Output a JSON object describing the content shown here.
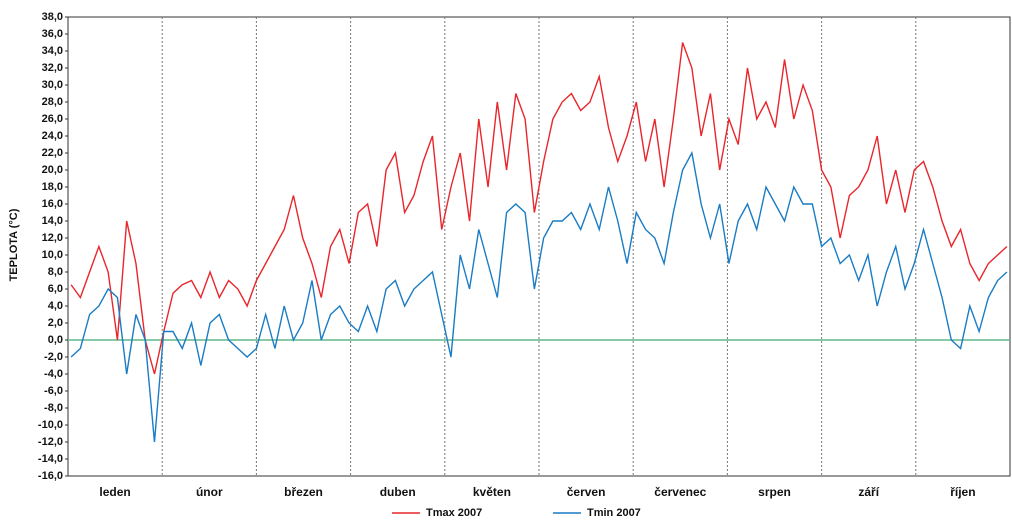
{
  "chart_data": {
    "type": "line",
    "y_label": "TEPLOTA (°C)",
    "categories": [
      "leden",
      "únor",
      "březen",
      "duben",
      "květen",
      "červen",
      "červenec",
      "srpen",
      "září",
      "říjen"
    ],
    "x": [
      1,
      4,
      7,
      10,
      13,
      16,
      19,
      22,
      25,
      28,
      31,
      34,
      37,
      40,
      43,
      46,
      49,
      52,
      55,
      58,
      61,
      64,
      67,
      70,
      73,
      76,
      79,
      82,
      85,
      88,
      91,
      94,
      97,
      100,
      103,
      106,
      109,
      112,
      115,
      118,
      121,
      124,
      127,
      130,
      133,
      136,
      139,
      142,
      145,
      148,
      151,
      154,
      157,
      160,
      163,
      166,
      169,
      172,
      175,
      178,
      181,
      184,
      187,
      190,
      193,
      196,
      199,
      202,
      205,
      208,
      211,
      214,
      217,
      220,
      223,
      226,
      229,
      232,
      235,
      238,
      241,
      244,
      247,
      250,
      253,
      256,
      259,
      262,
      265,
      268,
      271,
      274,
      277,
      280,
      283,
      286,
      289,
      292,
      295,
      298,
      301,
      304
    ],
    "xlim": [
      0,
      305
    ],
    "series": [
      {
        "name": "Tmax 2007",
        "color": "#e8262b",
        "values": [
          6.5,
          5,
          8,
          11,
          8,
          0,
          14,
          9,
          0,
          -4,
          1,
          5.5,
          6.5,
          7,
          5,
          8,
          5,
          7,
          6,
          4,
          7,
          9,
          11,
          13,
          17,
          12,
          9,
          5,
          11,
          13,
          9,
          15,
          16,
          11,
          20,
          22,
          15,
          17,
          21,
          24,
          13,
          18,
          22,
          14,
          26,
          18,
          28,
          20,
          29,
          26,
          15,
          21,
          26,
          28,
          29,
          27,
          28,
          31,
          25,
          21,
          24,
          28,
          21,
          26,
          18,
          26,
          35,
          32,
          24,
          29,
          20,
          26,
          23,
          32,
          26,
          28,
          25,
          33,
          26,
          30,
          27,
          20,
          18,
          12,
          17,
          18,
          20,
          24,
          16,
          20,
          15,
          20,
          21,
          18,
          14,
          11,
          13,
          9,
          7,
          9,
          10,
          11
        ]
      },
      {
        "name": "Tmin 2007",
        "color": "#1a7cc4",
        "values": [
          -2,
          -1,
          3,
          4,
          6,
          5,
          -4,
          3,
          0,
          -12,
          1,
          1,
          -1,
          2,
          -3,
          2,
          3,
          0,
          -1,
          -2,
          -1,
          3,
          -1,
          4,
          0,
          2,
          7,
          0,
          3,
          4,
          2,
          1,
          4,
          1,
          6,
          7,
          4,
          6,
          7,
          8,
          3,
          -2,
          10,
          6,
          13,
          9,
          5,
          15,
          16,
          15,
          6,
          12,
          14,
          14,
          15,
          13,
          16,
          13,
          18,
          14,
          9,
          15,
          13,
          12,
          9,
          15,
          20,
          22,
          16,
          12,
          16,
          9,
          14,
          16,
          13,
          18,
          16,
          14,
          18,
          16,
          16,
          11,
          12,
          9,
          10,
          7,
          10,
          4,
          8,
          11,
          6,
          9,
          13,
          9,
          5,
          0,
          -1,
          4,
          1,
          5,
          7,
          8
        ]
      }
    ],
    "ylim": [
      -16,
      38
    ],
    "yticks": [
      {
        "value": -16,
        "label": "-16,0"
      },
      {
        "value": -14,
        "label": "-14,0"
      },
      {
        "value": -12,
        "label": "-12,0"
      },
      {
        "value": -10,
        "label": "-10,0"
      },
      {
        "value": -8,
        "label": "-8,0"
      },
      {
        "value": -6,
        "label": "-6,0"
      },
      {
        "value": -4,
        "label": "-4,0"
      },
      {
        "value": -2,
        "label": "-2,0"
      },
      {
        "value": 0,
        "label": "0,0"
      },
      {
        "value": 2,
        "label": "2,0"
      },
      {
        "value": 4,
        "label": "4,0"
      },
      {
        "value": 6,
        "label": "6,0"
      },
      {
        "value": 8,
        "label": "8,0"
      },
      {
        "value": 10,
        "label": "10,0"
      },
      {
        "value": 12,
        "label": "12,0"
      },
      {
        "value": 14,
        "label": "14,0"
      },
      {
        "value": 16,
        "label": "16,0"
      },
      {
        "value": 18,
        "label": "18,0"
      },
      {
        "value": 20,
        "label": "20,0"
      },
      {
        "value": 22,
        "label": "22,0"
      },
      {
        "value": 24,
        "label": "24,0"
      },
      {
        "value": 26,
        "label": "26,0"
      },
      {
        "value": 28,
        "label": "28,0"
      },
      {
        "value": 30,
        "label": "30,0"
      },
      {
        "value": 32,
        "label": "32,0"
      },
      {
        "value": 34,
        "label": "34,0"
      },
      {
        "value": 36,
        "label": "36,0"
      },
      {
        "value": 38,
        "label": "38,0"
      }
    ],
    "reference_line": {
      "value": 0,
      "color": "#5fb88a"
    },
    "legend": "bottom"
  }
}
